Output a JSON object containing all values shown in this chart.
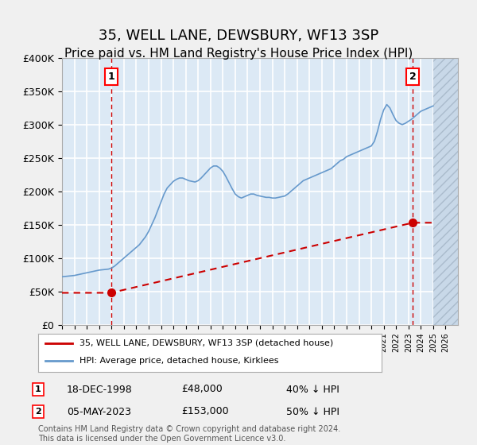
{
  "title": "35, WELL LANE, DEWSBURY, WF13 3SP",
  "subtitle": "Price paid vs. HM Land Registry's House Price Index (HPI)",
  "title_fontsize": 13,
  "subtitle_fontsize": 11,
  "sale1_date_num": 1998.96,
  "sale1_price": 48000,
  "sale1_label": "1",
  "sale2_date_num": 2023.35,
  "sale2_price": 153000,
  "sale2_label": "2",
  "sale1_display": "18-DEC-1998",
  "sale1_amount": "£48,000",
  "sale1_hpi": "40% ↓ HPI",
  "sale2_display": "05-MAY-2023",
  "sale2_amount": "£153,000",
  "sale2_hpi": "50% ↓ HPI",
  "ylabel": "",
  "xmin": 1995,
  "xmax": 2027,
  "ymin": 0,
  "ymax": 400000,
  "background_color": "#dce9f5",
  "plot_bg_color": "#dce9f5",
  "grid_color": "#ffffff",
  "red_line_color": "#cc0000",
  "blue_line_color": "#6699cc",
  "hatch_color": "#b0c4d8",
  "legend1": "35, WELL LANE, DEWSBURY, WF13 3SP (detached house)",
  "legend2": "HPI: Average price, detached house, Kirklees",
  "footnote": "Contains HM Land Registry data © Crown copyright and database right 2024.\nThis data is licensed under the Open Government Licence v3.0.",
  "hpi_years": [
    1995.0,
    1995.25,
    1995.5,
    1995.75,
    1996.0,
    1996.25,
    1996.5,
    1996.75,
    1997.0,
    1997.25,
    1997.5,
    1997.75,
    1998.0,
    1998.25,
    1998.5,
    1998.75,
    1999.0,
    1999.25,
    1999.5,
    1999.75,
    2000.0,
    2000.25,
    2000.5,
    2000.75,
    2001.0,
    2001.25,
    2001.5,
    2001.75,
    2002.0,
    2002.25,
    2002.5,
    2002.75,
    2003.0,
    2003.25,
    2003.5,
    2003.75,
    2004.0,
    2004.25,
    2004.5,
    2004.75,
    2005.0,
    2005.25,
    2005.5,
    2005.75,
    2006.0,
    2006.25,
    2006.5,
    2006.75,
    2007.0,
    2007.25,
    2007.5,
    2007.75,
    2008.0,
    2008.25,
    2008.5,
    2008.75,
    2009.0,
    2009.25,
    2009.5,
    2009.75,
    2010.0,
    2010.25,
    2010.5,
    2010.75,
    2011.0,
    2011.25,
    2011.5,
    2011.75,
    2012.0,
    2012.25,
    2012.5,
    2012.75,
    2013.0,
    2013.25,
    2013.5,
    2013.75,
    2014.0,
    2014.25,
    2014.5,
    2014.75,
    2015.0,
    2015.25,
    2015.5,
    2015.75,
    2016.0,
    2016.25,
    2016.5,
    2016.75,
    2017.0,
    2017.25,
    2017.5,
    2017.75,
    2018.0,
    2018.25,
    2018.5,
    2018.75,
    2019.0,
    2019.25,
    2019.5,
    2019.75,
    2020.0,
    2020.25,
    2020.5,
    2020.75,
    2021.0,
    2021.25,
    2021.5,
    2021.75,
    2022.0,
    2022.25,
    2022.5,
    2022.75,
    2023.0,
    2023.25,
    2023.5,
    2023.75,
    2024.0,
    2024.25,
    2024.5,
    2024.75,
    2025.0
  ],
  "hpi_values": [
    72000,
    72500,
    73000,
    73500,
    74000,
    75000,
    76000,
    77000,
    78000,
    79000,
    80000,
    81000,
    82000,
    82500,
    83000,
    83500,
    85000,
    88000,
    92000,
    96000,
    100000,
    104000,
    108000,
    112000,
    116000,
    120000,
    126000,
    132000,
    140000,
    150000,
    160000,
    172000,
    184000,
    196000,
    205000,
    210000,
    215000,
    218000,
    220000,
    220000,
    218000,
    216000,
    215000,
    214000,
    216000,
    220000,
    225000,
    230000,
    235000,
    238000,
    238000,
    235000,
    230000,
    222000,
    213000,
    204000,
    196000,
    192000,
    190000,
    192000,
    194000,
    196000,
    196000,
    194000,
    193000,
    192000,
    191000,
    191000,
    190000,
    190000,
    191000,
    192000,
    193000,
    196000,
    200000,
    204000,
    208000,
    212000,
    216000,
    218000,
    220000,
    222000,
    224000,
    226000,
    228000,
    230000,
    232000,
    234000,
    238000,
    242000,
    246000,
    248000,
    252000,
    254000,
    256000,
    258000,
    260000,
    262000,
    264000,
    266000,
    268000,
    275000,
    290000,
    308000,
    322000,
    330000,
    325000,
    315000,
    306000,
    302000,
    300000,
    302000,
    305000,
    308000,
    312000,
    316000,
    320000,
    322000,
    324000,
    326000,
    328000
  ]
}
